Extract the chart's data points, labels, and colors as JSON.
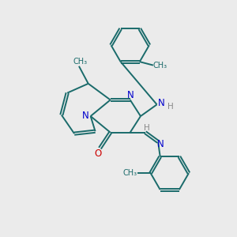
{
  "bg_color": "#ebebeb",
  "bond_color": "#1a6b6b",
  "bond_width": 1.4,
  "N_color": "#0000cc",
  "O_color": "#cc0000",
  "H_color": "#888888",
  "figsize": [
    3.0,
    3.0
  ],
  "dpi": 100,
  "xlim": [
    0,
    10
  ],
  "ylim": [
    0,
    10
  ]
}
